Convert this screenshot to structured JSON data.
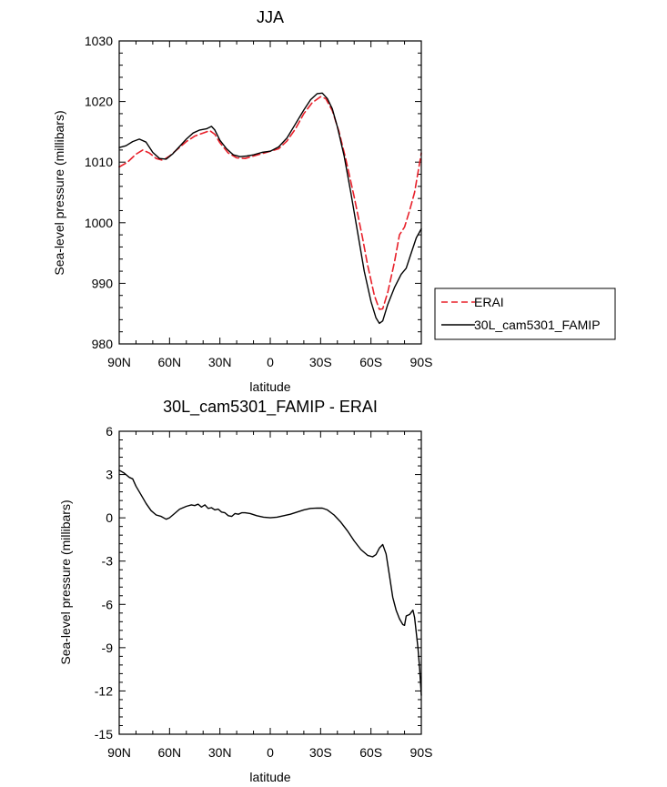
{
  "chart_data": [
    {
      "type": "line",
      "title": "JJA",
      "xlabel": "latitude",
      "ylabel": "Sea-level pressure (millibars)",
      "xlim": [
        90,
        -90
      ],
      "ylim": [
        980,
        1030
      ],
      "x_ticks": [
        90,
        60,
        30,
        0,
        -30,
        -60,
        -90
      ],
      "x_tick_labels": [
        "90N",
        "60N",
        "30N",
        "0",
        "30S",
        "60S",
        "90S"
      ],
      "y_ticks": [
        980,
        990,
        1000,
        1010,
        1020,
        1030
      ],
      "y_tick_labels": [
        "980",
        "990",
        "1000",
        "1010",
        "1020",
        "1030"
      ],
      "legend_position": "right",
      "series": [
        {
          "name": "ERAI",
          "color": "#e8202a",
          "dash": "dashed",
          "points": [
            [
              90,
              1009.2
            ],
            [
              85,
              1010
            ],
            [
              80,
              1011.3
            ],
            [
              76,
              1012
            ],
            [
              72,
              1011.5
            ],
            [
              68,
              1010.6
            ],
            [
              64,
              1010.3
            ],
            [
              60,
              1011
            ],
            [
              55,
              1012.2
            ],
            [
              50,
              1013.4
            ],
            [
              45,
              1014.3
            ],
            [
              40,
              1014.8
            ],
            [
              36,
              1015.2
            ],
            [
              33,
              1014.6
            ],
            [
              30,
              1013.2
            ],
            [
              25,
              1011.5
            ],
            [
              20,
              1010.7
            ],
            [
              15,
              1010.6
            ],
            [
              10,
              1011
            ],
            [
              5,
              1011.4
            ],
            [
              0,
              1011.8
            ],
            [
              -5,
              1012.2
            ],
            [
              -10,
              1013.5
            ],
            [
              -15,
              1015.5
            ],
            [
              -20,
              1018
            ],
            [
              -25,
              1019.8
            ],
            [
              -30,
              1020.8
            ],
            [
              -33,
              1020.5
            ],
            [
              -37,
              1018.5
            ],
            [
              -41,
              1015
            ],
            [
              -45,
              1010.5
            ],
            [
              -50,
              1004.3
            ],
            [
              -55,
              997.5
            ],
            [
              -58,
              993
            ],
            [
              -62,
              988
            ],
            [
              -65,
              985.7
            ],
            [
              -67,
              985.8
            ],
            [
              -70,
              988.5
            ],
            [
              -74,
              993.5
            ],
            [
              -77,
              998
            ],
            [
              -80,
              999.3
            ],
            [
              -83,
              1002
            ],
            [
              -86,
              1005
            ],
            [
              -90,
              1011.5
            ]
          ]
        },
        {
          "name": "30L_cam5301_FAMIP",
          "color": "#000000",
          "dash": "solid",
          "points": [
            [
              90,
              1012.4
            ],
            [
              86,
              1012.7
            ],
            [
              82,
              1013.4
            ],
            [
              78,
              1013.8
            ],
            [
              74,
              1013.3
            ],
            [
              70,
              1011.6
            ],
            [
              66,
              1010.6
            ],
            [
              62,
              1010.5
            ],
            [
              58,
              1011.4
            ],
            [
              54,
              1012.6
            ],
            [
              50,
              1013.8
            ],
            [
              46,
              1014.8
            ],
            [
              42,
              1015.3
            ],
            [
              38,
              1015.5
            ],
            [
              35,
              1015.9
            ],
            [
              33,
              1015.3
            ],
            [
              30,
              1013.6
            ],
            [
              26,
              1012.2
            ],
            [
              22,
              1011.2
            ],
            [
              18,
              1010.9
            ],
            [
              14,
              1011
            ],
            [
              10,
              1011.2
            ],
            [
              5,
              1011.6
            ],
            [
              0,
              1011.8
            ],
            [
              -5,
              1012.5
            ],
            [
              -10,
              1014
            ],
            [
              -15,
              1016.3
            ],
            [
              -20,
              1018.6
            ],
            [
              -24,
              1020.3
            ],
            [
              -28,
              1021.3
            ],
            [
              -31,
              1021.4
            ],
            [
              -34,
              1020.5
            ],
            [
              -37,
              1018.8
            ],
            [
              -40,
              1015.8
            ],
            [
              -44,
              1011
            ],
            [
              -48,
              1005
            ],
            [
              -52,
              998.5
            ],
            [
              -56,
              992
            ],
            [
              -60,
              987
            ],
            [
              -63,
              984.3
            ],
            [
              -65,
              983.4
            ],
            [
              -67,
              983.8
            ],
            [
              -70,
              986.5
            ],
            [
              -74,
              989.3
            ],
            [
              -78,
              991.5
            ],
            [
              -81,
              992.5
            ],
            [
              -84,
              995
            ],
            [
              -87,
              997.5
            ],
            [
              -90,
              999
            ]
          ]
        }
      ]
    },
    {
      "type": "line",
      "title": "30L_cam5301_FAMIP - ERAI",
      "xlabel": "latitude",
      "ylabel": "Sea-level pressure (millibars)",
      "xlim": [
        90,
        -90
      ],
      "ylim": [
        -15,
        6
      ],
      "x_ticks": [
        90,
        60,
        30,
        0,
        -30,
        -60,
        -90
      ],
      "x_tick_labels": [
        "90N",
        "60N",
        "30N",
        "0",
        "30S",
        "60S",
        "90S"
      ],
      "y_ticks": [
        -15,
        -12,
        -9,
        -6,
        -3,
        0,
        3,
        6
      ],
      "y_tick_labels": [
        "-15",
        "-12",
        "-9",
        "-6",
        "-3",
        "0",
        "3",
        "6"
      ],
      "series": [
        {
          "color": "#000000",
          "dash": "solid",
          "points": [
            [
              90,
              3.3
            ],
            [
              87,
              3.1
            ],
            [
              84,
              2.8
            ],
            [
              82,
              2.7
            ],
            [
              80,
              2.2
            ],
            [
              77,
              1.6
            ],
            [
              74,
              1.0
            ],
            [
              71,
              0.5
            ],
            [
              68,
              0.2
            ],
            [
              65,
              0.1
            ],
            [
              62,
              -0.1
            ],
            [
              60,
              0.0
            ],
            [
              57,
              0.3
            ],
            [
              54,
              0.6
            ],
            [
              50,
              0.8
            ],
            [
              47,
              0.9
            ],
            [
              45,
              0.85
            ],
            [
              43,
              0.95
            ],
            [
              41,
              0.75
            ],
            [
              39,
              0.9
            ],
            [
              37,
              0.65
            ],
            [
              35,
              0.7
            ],
            [
              33,
              0.55
            ],
            [
              31,
              0.6
            ],
            [
              29,
              0.4
            ],
            [
              27,
              0.35
            ],
            [
              25,
              0.15
            ],
            [
              23,
              0.1
            ],
            [
              21,
              0.3
            ],
            [
              19,
              0.25
            ],
            [
              17,
              0.35
            ],
            [
              15,
              0.35
            ],
            [
              12,
              0.3
            ],
            [
              8,
              0.15
            ],
            [
              4,
              0.05
            ],
            [
              0,
              0.0
            ],
            [
              -4,
              0.05
            ],
            [
              -8,
              0.15
            ],
            [
              -12,
              0.25
            ],
            [
              -16,
              0.4
            ],
            [
              -20,
              0.55
            ],
            [
              -24,
              0.65
            ],
            [
              -28,
              0.68
            ],
            [
              -31,
              0.67
            ],
            [
              -34,
              0.55
            ],
            [
              -38,
              0.2
            ],
            [
              -42,
              -0.3
            ],
            [
              -46,
              -0.9
            ],
            [
              -50,
              -1.6
            ],
            [
              -54,
              -2.2
            ],
            [
              -58,
              -2.6
            ],
            [
              -61,
              -2.7
            ],
            [
              -63,
              -2.55
            ],
            [
              -65,
              -2.1
            ],
            [
              -67,
              -1.85
            ],
            [
              -69,
              -2.5
            ],
            [
              -71,
              -4.0
            ],
            [
              -73,
              -5.5
            ],
            [
              -75,
              -6.4
            ],
            [
              -77,
              -7.0
            ],
            [
              -79,
              -7.4
            ],
            [
              -80,
              -7.45
            ],
            [
              -81,
              -6.8
            ],
            [
              -83,
              -6.7
            ],
            [
              -85,
              -6.4
            ],
            [
              -86,
              -6.9
            ],
            [
              -88,
              -9.0
            ],
            [
              -89,
              -10.5
            ],
            [
              -90,
              -12.3
            ]
          ]
        }
      ]
    }
  ]
}
